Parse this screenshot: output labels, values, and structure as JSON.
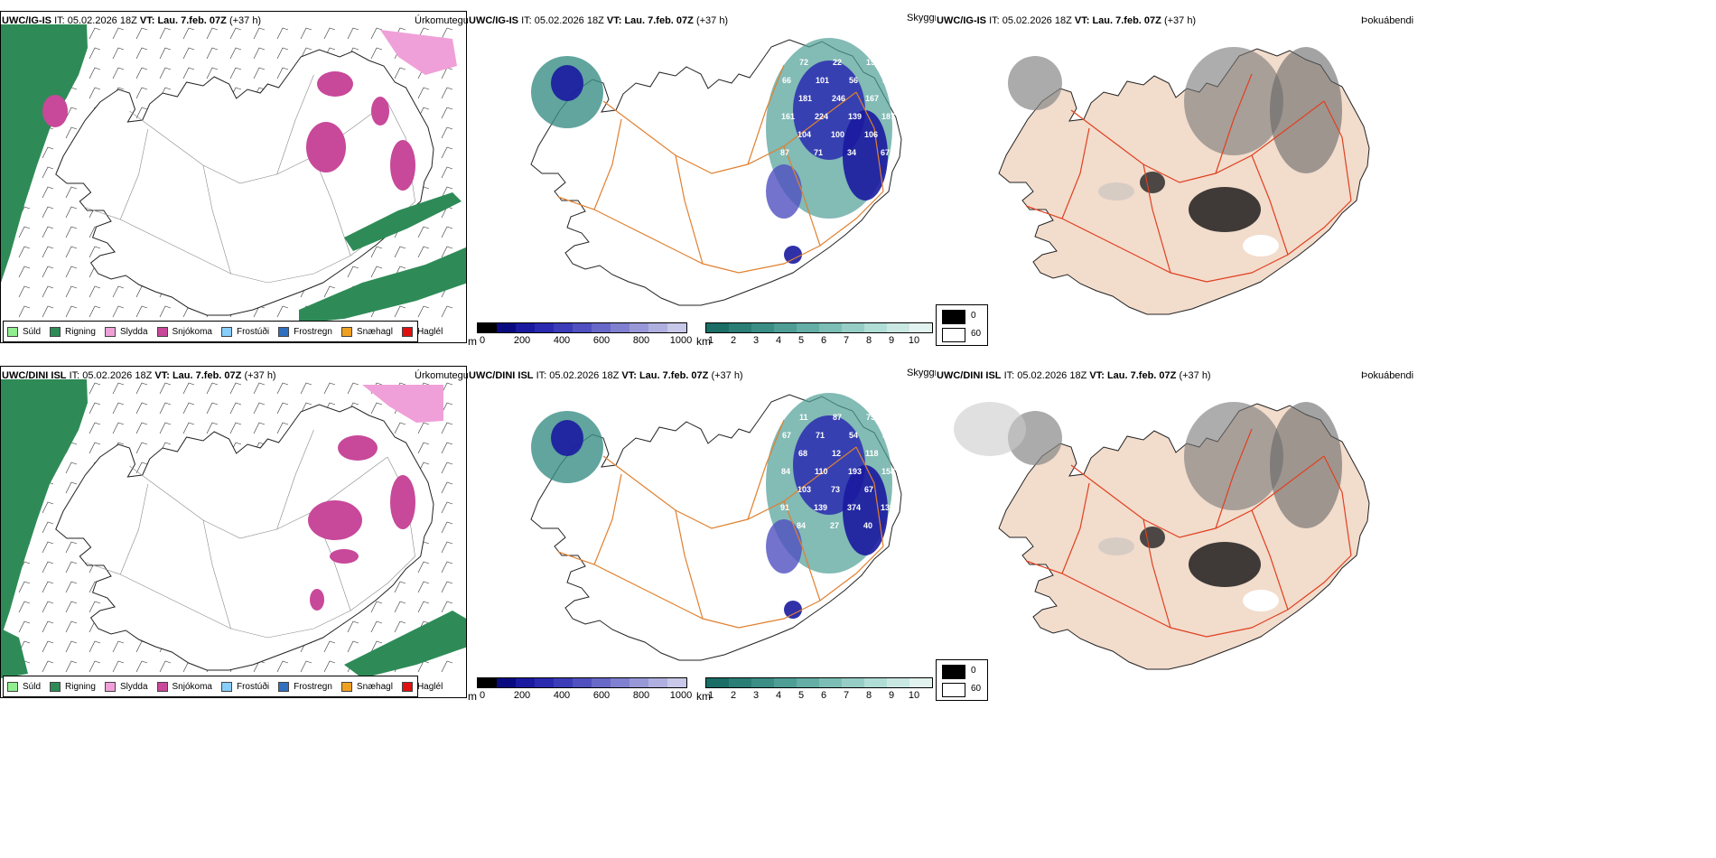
{
  "rows": [
    {
      "model": "UWC/IG-IS",
      "it_label": "IT:",
      "it_value": "05.02.2026 18Z",
      "vt_label": "VT:",
      "vt_value": "Lau. 7.feb. 07Z",
      "lead": "(+37 h)"
    },
    {
      "model": "UWC/DINI ISL",
      "it_label": "IT:",
      "it_value": "05.02.2026 18Z",
      "vt_label": "VT:",
      "vt_value": "Lau. 7.feb. 07Z",
      "lead": "(+37 h)"
    }
  ],
  "panel_titles": {
    "precip_type": "Úrkomutegund",
    "visibility": "Skyggni",
    "fog": "Þokuábendi"
  },
  "precip_legend": [
    {
      "label": "Súld",
      "color": "#90ee90"
    },
    {
      "label": "Rigning",
      "color": "#2e8b57"
    },
    {
      "label": "Slydda",
      "color": "#f0a0d8"
    },
    {
      "label": "Snjókoma",
      "color": "#c8489a"
    },
    {
      "label": "Frostúði",
      "color": "#87cefa"
    },
    {
      "label": "Frostregn",
      "color": "#3070c0"
    },
    {
      "label": "Snæhagl",
      "color": "#f0a020"
    },
    {
      "label": "Haglél",
      "color": "#e01010"
    }
  ],
  "visibility_m_scale": {
    "unit": "m",
    "ticks": [
      "0",
      "200",
      "400",
      "600",
      "800",
      "1000"
    ],
    "colors": [
      "#000000",
      "#0a0a80",
      "#1a1aa0",
      "#2a2ab0",
      "#3c3cb8",
      "#5050c0",
      "#6868c8",
      "#8080d0",
      "#9898d8",
      "#b0b0e0",
      "#c8c8e8"
    ]
  },
  "visibility_km_scale": {
    "unit": "km",
    "ticks": [
      "1",
      "2",
      "3",
      "4",
      "5",
      "6",
      "7",
      "8",
      "9",
      "10"
    ],
    "colors": [
      "#1a6e66",
      "#2a7e76",
      "#3a8e86",
      "#4e9e96",
      "#64aea6",
      "#7cbeb6",
      "#96cec6",
      "#b0ded6",
      "#cae8e2",
      "#e2f2ee"
    ]
  },
  "fog_legend": [
    {
      "label": "0",
      "color": "#000000"
    },
    {
      "label": "60",
      "color": "#ffffff"
    }
  ],
  "vis_numbers": [
    [
      "124",
      "72",
      "22",
      "157",
      "66",
      "101",
      "56",
      "39",
      "181",
      "246",
      "167",
      "161",
      "224",
      "139",
      "187",
      "104",
      "100",
      "106",
      "87",
      "71",
      "34",
      "67"
    ],
    [
      "99",
      "11",
      "87",
      "75",
      "67",
      "71",
      "54",
      "84",
      "68",
      "12",
      "118",
      "84",
      "110",
      "193",
      "158",
      "103",
      "73",
      "67",
      "91",
      "139",
      "374",
      "139",
      "84",
      "27",
      "40"
    ]
  ],
  "colors": {
    "rain": "#2e8b57",
    "snow": "#c8489a",
    "sleet": "#f0a0d8",
    "road": "#e08030",
    "fog_land": "#f2dccc",
    "fog_road": "#e04020"
  }
}
